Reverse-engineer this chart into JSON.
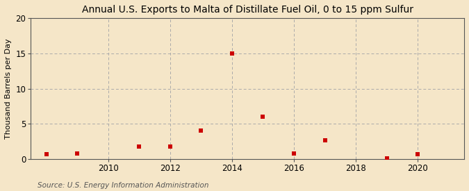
{
  "title": "Annual U.S. Exports to Malta of Distillate Fuel Oil, 0 to 15 ppm Sulfur",
  "ylabel": "Thousand Barrels per Day",
  "source": "Source: U.S. Energy Information Administration",
  "background_color": "#f5e6c8",
  "plot_background_color": "#f5e6c8",
  "years": [
    2008,
    2009,
    2011,
    2012,
    2013,
    2014,
    2015,
    2016,
    2017,
    2019,
    2020
  ],
  "values": [
    0.7,
    0.8,
    1.8,
    1.8,
    4.0,
    15.0,
    6.0,
    0.8,
    2.7,
    0.1,
    0.7
  ],
  "marker_color": "#cc0000",
  "marker_size": 18,
  "ylim": [
    0,
    20
  ],
  "yticks": [
    0,
    5,
    10,
    15,
    20
  ],
  "xticks": [
    2010,
    2012,
    2014,
    2016,
    2018,
    2020
  ],
  "xlim": [
    2007.5,
    2021.5
  ],
  "grid_color": "#aaaaaa",
  "title_fontsize": 10,
  "ylabel_fontsize": 8,
  "source_fontsize": 7.5,
  "tick_fontsize": 8.5
}
